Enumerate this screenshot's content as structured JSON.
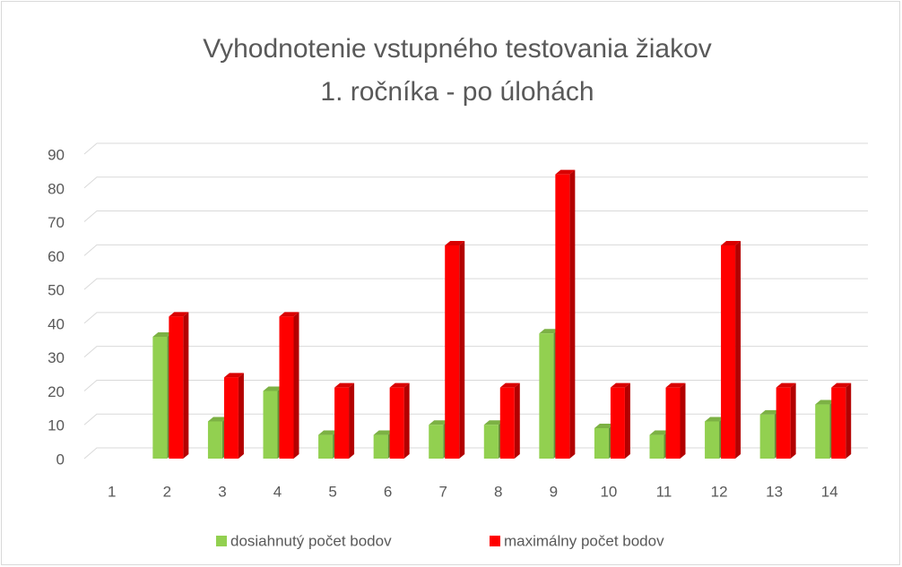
{
  "chart_data": {
    "type": "bar3d",
    "title": [
      "Vyhodnotenie vstupného testovania žiakov",
      "1. ročníka - po úlohách"
    ],
    "categories": [
      "1",
      "2",
      "3",
      "4",
      "5",
      "6",
      "7",
      "8",
      "9",
      "10",
      "11",
      "12",
      "13",
      "14"
    ],
    "series": [
      {
        "name": "dosiahnutý počet bodov",
        "color": "#92d050",
        "values": [
          null,
          36,
          11,
          20,
          7,
          7,
          10,
          10,
          37,
          9,
          7,
          11,
          13,
          16
        ]
      },
      {
        "name": "maximálny počet bodov",
        "color": "#ff0000",
        "values": [
          null,
          42,
          24,
          42,
          21,
          21,
          63,
          21,
          84,
          21,
          21,
          63,
          21,
          21
        ]
      }
    ],
    "ylim": [
      0,
      90
    ],
    "yticks": [
      0,
      10,
      20,
      30,
      40,
      50,
      60,
      70,
      80,
      90
    ],
    "grid": true,
    "legend": "bottom"
  }
}
